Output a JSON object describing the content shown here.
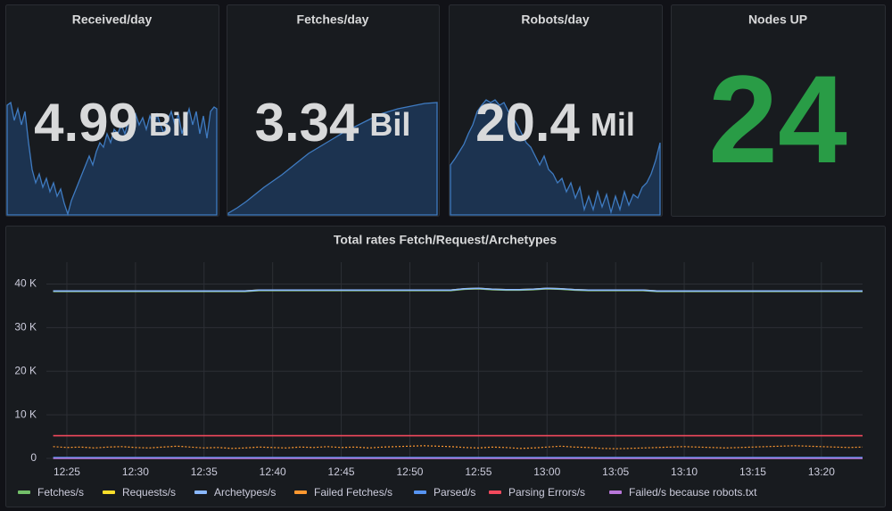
{
  "panels": [
    {
      "title": "Received/day",
      "value": "4.99",
      "unit": "Bil"
    },
    {
      "title": "Fetches/day",
      "value": "3.34",
      "unit": "Bil"
    },
    {
      "title": "Robots/day",
      "value": "20.4",
      "unit": "Mil"
    },
    {
      "title": "Nodes UP",
      "value": "24"
    }
  ],
  "chart_data": {
    "type": "line",
    "title": "Total rates Fetch/Request/Archetypes",
    "x": [
      "12:24",
      "12:25",
      "12:26",
      "12:27",
      "12:28",
      "12:29",
      "12:30",
      "12:31",
      "12:32",
      "12:33",
      "12:34",
      "12:35",
      "12:36",
      "12:37",
      "12:38",
      "12:39",
      "12:40",
      "12:41",
      "12:42",
      "12:43",
      "12:44",
      "12:45",
      "12:46",
      "12:47",
      "12:48",
      "12:49",
      "12:50",
      "12:51",
      "12:52",
      "12:53",
      "12:54",
      "12:55",
      "12:56",
      "12:57",
      "12:58",
      "12:59",
      "13:00",
      "13:01",
      "13:02",
      "13:03",
      "13:04",
      "13:05",
      "13:06",
      "13:07",
      "13:08",
      "13:09",
      "13:10",
      "13:11",
      "13:12",
      "13:13",
      "13:14",
      "13:15",
      "13:16",
      "13:17",
      "13:18",
      "13:19",
      "13:20",
      "13:21",
      "13:22",
      "13:23"
    ],
    "xticks": [
      "12:25",
      "12:30",
      "12:35",
      "12:40",
      "12:45",
      "12:50",
      "12:55",
      "13:00",
      "13:05",
      "13:10",
      "13:15",
      "13:20"
    ],
    "ylim": [
      0,
      45000
    ],
    "yticks": [
      0,
      {
        "value": 10000,
        "label": "10 K"
      },
      {
        "value": 20000,
        "label": "20 K"
      },
      {
        "value": 30000,
        "label": "30 K"
      },
      {
        "value": 40000,
        "label": "40 K"
      }
    ],
    "grid": true,
    "series": [
      {
        "name": "Fetches/s",
        "color": "#73bf69",
        "values": [
          38300,
          38300,
          38300,
          38300,
          38300,
          38300,
          38300,
          38300,
          38300,
          38300,
          38300,
          38300,
          38300,
          38300,
          38300,
          38500,
          38500,
          38500,
          38500,
          38500,
          38500,
          38500,
          38500,
          38500,
          38500,
          38500,
          38500,
          38500,
          38500,
          38500,
          38800,
          38900,
          38700,
          38600,
          38600,
          38700,
          38900,
          38800,
          38600,
          38500,
          38500,
          38500,
          38500,
          38500,
          38300,
          38300,
          38300,
          38300,
          38300,
          38300,
          38300,
          38300,
          38300,
          38300,
          38300,
          38300,
          38300,
          38300,
          38300,
          38300
        ]
      },
      {
        "name": "Requests/s",
        "color": "#fade2a",
        "values": [
          38400,
          38400,
          38400,
          38400,
          38400,
          38400,
          38400,
          38400,
          38400,
          38400,
          38400,
          38400,
          38400,
          38400,
          38400,
          38600,
          38600,
          38600,
          38600,
          38600,
          38600,
          38600,
          38600,
          38600,
          38600,
          38600,
          38600,
          38600,
          38600,
          38600,
          38900,
          39000,
          38800,
          38700,
          38700,
          38800,
          39000,
          38900,
          38700,
          38600,
          38600,
          38600,
          38600,
          38600,
          38400,
          38400,
          38400,
          38400,
          38400,
          38400,
          38400,
          38400,
          38400,
          38400,
          38400,
          38400,
          38400,
          38400,
          38400,
          38400
        ]
      },
      {
        "name": "Archetypes/s",
        "color": "#8ab8ff",
        "values": [
          38400,
          38400,
          38400,
          38400,
          38400,
          38400,
          38400,
          38400,
          38400,
          38400,
          38400,
          38400,
          38400,
          38400,
          38400,
          38600,
          38600,
          38600,
          38600,
          38600,
          38600,
          38600,
          38600,
          38600,
          38600,
          38600,
          38600,
          38600,
          38600,
          38600,
          38900,
          39000,
          38800,
          38700,
          38700,
          38800,
          39000,
          38900,
          38700,
          38600,
          38600,
          38600,
          38600,
          38600,
          38400,
          38400,
          38400,
          38400,
          38400,
          38400,
          38400,
          38400,
          38400,
          38400,
          38400,
          38400,
          38400,
          38400,
          38400,
          38400
        ]
      },
      {
        "name": "Failed Fetches/s",
        "color": "#ff9830",
        "dashed": true,
        "values": [
          2700,
          2500,
          2600,
          2400,
          2600,
          2700,
          2500,
          2400,
          2600,
          2800,
          2600,
          2400,
          2500,
          2300,
          2400,
          2600,
          2500,
          2400,
          2600,
          2500,
          2700,
          2500,
          2600,
          2400,
          2600,
          2700,
          2800,
          2900,
          2800,
          2700,
          2500,
          2400,
          2600,
          2500,
          2300,
          2400,
          2600,
          2800,
          2600,
          2500,
          2300,
          2200,
          2300,
          2400,
          2500,
          2600,
          2700,
          2600,
          2500,
          2400,
          2500,
          2600,
          2700,
          2800,
          2900,
          2800,
          2700,
          2600,
          2500,
          2600
        ]
      },
      {
        "name": "Parsed/s",
        "color": "#5794f2",
        "values": [
          200,
          200,
          200,
          200,
          200,
          200,
          200,
          200,
          200,
          200,
          200,
          200,
          200,
          200,
          200,
          200,
          200,
          200,
          200,
          200,
          200,
          200,
          200,
          200,
          200,
          200,
          200,
          200,
          200,
          200,
          200,
          200,
          200,
          200,
          200,
          200,
          200,
          200,
          200,
          200,
          200,
          200,
          200,
          200,
          200,
          200,
          200,
          200,
          200,
          200,
          200,
          200,
          200,
          200,
          200,
          200,
          200,
          200,
          200,
          200
        ]
      },
      {
        "name": "Parsing Errors/s",
        "color": "#f2495c",
        "values": [
          5200,
          5200,
          5200,
          5200,
          5200,
          5200,
          5200,
          5200,
          5200,
          5200,
          5200,
          5200,
          5200,
          5200,
          5200,
          5200,
          5200,
          5200,
          5200,
          5200,
          5200,
          5200,
          5200,
          5200,
          5200,
          5200,
          5200,
          5200,
          5200,
          5200,
          5200,
          5200,
          5200,
          5200,
          5200,
          5200,
          5200,
          5200,
          5200,
          5200,
          5200,
          5200,
          5200,
          5200,
          5200,
          5200,
          5200,
          5200,
          5200,
          5200,
          5200,
          5200,
          5200,
          5200,
          5200,
          5200,
          5200,
          5200,
          5200,
          5200
        ]
      },
      {
        "name": "Failed/s because robots.txt",
        "color": "#b877d9",
        "values": [
          0,
          0,
          0,
          0,
          0,
          0,
          0,
          0,
          0,
          0,
          0,
          0,
          0,
          0,
          0,
          0,
          0,
          0,
          0,
          0,
          0,
          0,
          0,
          0,
          0,
          0,
          0,
          0,
          0,
          0,
          0,
          0,
          0,
          0,
          0,
          0,
          0,
          0,
          0,
          0,
          0,
          0,
          0,
          0,
          0,
          0,
          0,
          0,
          0,
          0,
          0,
          0,
          0,
          0,
          0,
          0,
          0,
          0,
          0,
          0
        ]
      }
    ]
  }
}
